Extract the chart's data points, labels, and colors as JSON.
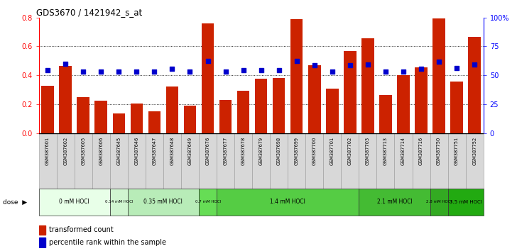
{
  "title": "GDS3670 / 1421942_s_at",
  "samples": [
    "GSM387601",
    "GSM387602",
    "GSM387605",
    "GSM387606",
    "GSM387645",
    "GSM387646",
    "GSM387647",
    "GSM387648",
    "GSM387649",
    "GSM387676",
    "GSM387677",
    "GSM387678",
    "GSM387679",
    "GSM387698",
    "GSM387699",
    "GSM387700",
    "GSM387701",
    "GSM387702",
    "GSM387703",
    "GSM387713",
    "GSM387714",
    "GSM387716",
    "GSM387750",
    "GSM387751",
    "GSM387752"
  ],
  "bar_values": [
    0.325,
    0.465,
    0.25,
    0.225,
    0.135,
    0.205,
    0.15,
    0.32,
    0.19,
    0.76,
    0.23,
    0.295,
    0.375,
    0.38,
    0.79,
    0.47,
    0.31,
    0.57,
    0.655,
    0.265,
    0.4,
    0.455,
    0.795,
    0.355,
    0.665
  ],
  "dot_values": [
    0.545,
    0.6,
    0.53,
    0.53,
    0.53,
    0.53,
    0.53,
    0.555,
    0.53,
    0.625,
    0.535,
    0.545,
    0.545,
    0.545,
    0.625,
    0.59,
    0.535,
    0.59,
    0.595,
    0.535,
    0.535,
    0.555,
    0.62,
    0.565,
    0.595
  ],
  "dose_groups": [
    {
      "label": "0 mM HOCl",
      "color": "#e8ffe8",
      "start": 0,
      "end": 4
    },
    {
      "label": "0.14 mM HOCl",
      "color": "#d0f5d0",
      "start": 4,
      "end": 5
    },
    {
      "label": "0.35 mM HOCl",
      "color": "#b8ecb8",
      "start": 5,
      "end": 9
    },
    {
      "label": "0.7 mM HOCl",
      "color": "#66dd55",
      "start": 9,
      "end": 10
    },
    {
      "label": "1.4 mM HOCl",
      "color": "#55cc44",
      "start": 10,
      "end": 18
    },
    {
      "label": "2.1 mM HOCl",
      "color": "#44bb33",
      "start": 18,
      "end": 22
    },
    {
      "label": "2.8 mM HOCl",
      "color": "#33aa22",
      "start": 22,
      "end": 23
    },
    {
      "label": "3.5 mM HOCl",
      "color": "#22aa11",
      "start": 23,
      "end": 25
    }
  ],
  "bar_color": "#cc2200",
  "dot_color": "#0000cc",
  "ylim_left": [
    0,
    0.8
  ],
  "ylim_right": [
    0,
    1.0
  ],
  "yticks_left": [
    0,
    0.2,
    0.4,
    0.6,
    0.8
  ],
  "yticks_right": [
    0,
    0.25,
    0.5,
    0.75,
    1.0
  ],
  "ytick_labels_right": [
    "0",
    "25",
    "50",
    "75",
    "100%"
  ],
  "grid_vals": [
    0.2,
    0.4,
    0.6
  ]
}
